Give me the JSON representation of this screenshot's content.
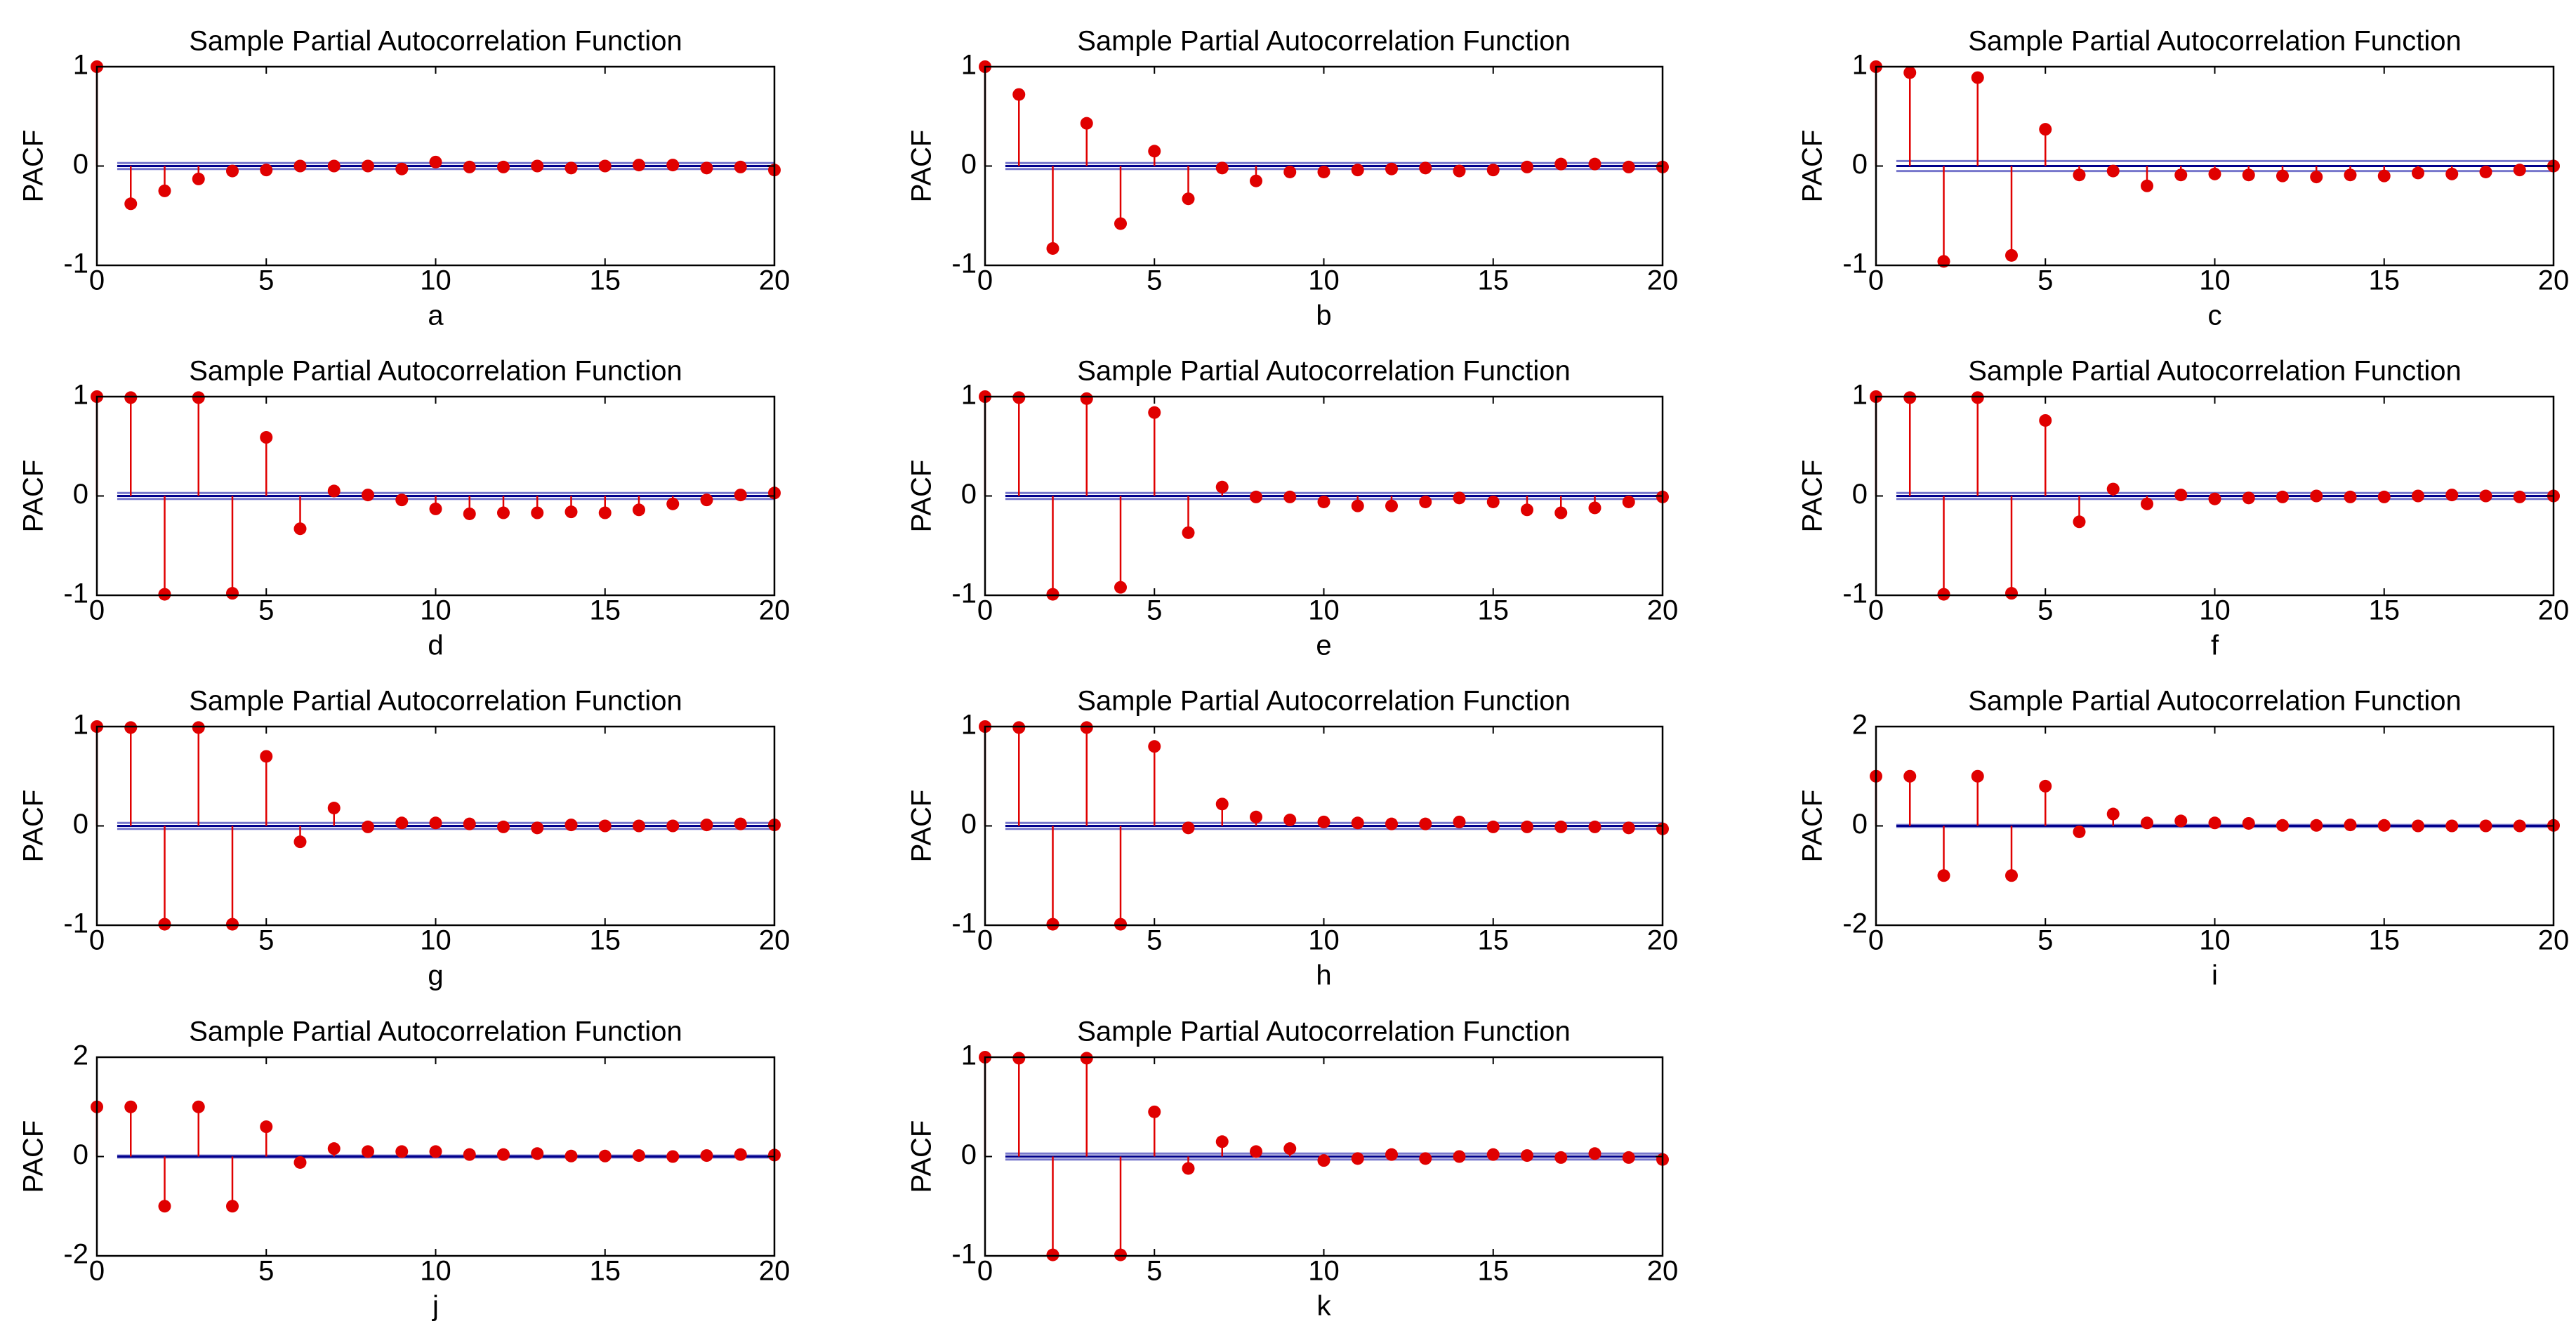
{
  "figure": {
    "colors": {
      "stem": "#e00000",
      "marker": "#e00000",
      "confidence": "#7777cc",
      "zero": "#00008b",
      "axes": "#000000"
    }
  },
  "chart_data": [
    {
      "id": "a",
      "type": "stem",
      "title": "Sample Partial Autocorrelation Function",
      "xlabel": "a",
      "ylabel": "PACF",
      "xlim": [
        0,
        20
      ],
      "ylim": [
        -1,
        1
      ],
      "xticks": [
        0,
        5,
        10,
        15,
        20
      ],
      "yticks": [
        -1,
        0,
        1
      ],
      "confidence": 0.03,
      "lags": [
        0,
        1,
        2,
        3,
        4,
        5,
        6,
        7,
        8,
        9,
        10,
        11,
        12,
        13,
        14,
        15,
        16,
        17,
        18,
        19,
        20
      ],
      "values": [
        1,
        -0.38,
        -0.25,
        -0.13,
        -0.05,
        -0.04,
        0.0,
        0.0,
        0.0,
        -0.03,
        0.04,
        -0.01,
        -0.01,
        0.0,
        -0.02,
        0.0,
        0.01,
        0.01,
        -0.02,
        -0.01,
        -0.04
      ]
    },
    {
      "id": "b",
      "type": "stem",
      "title": "Sample Partial Autocorrelation Function",
      "xlabel": "b",
      "ylabel": "PACF",
      "xlim": [
        0,
        20
      ],
      "ylim": [
        -1,
        1
      ],
      "xticks": [
        0,
        5,
        10,
        15,
        20
      ],
      "yticks": [
        -1,
        0,
        1
      ],
      "confidence": 0.03,
      "lags": [
        0,
        1,
        2,
        3,
        4,
        5,
        6,
        7,
        8,
        9,
        10,
        11,
        12,
        13,
        14,
        15,
        16,
        17,
        18,
        19,
        20
      ],
      "values": [
        1,
        0.72,
        -0.83,
        0.43,
        -0.58,
        0.15,
        -0.33,
        -0.02,
        -0.15,
        -0.06,
        -0.06,
        -0.04,
        -0.03,
        -0.02,
        -0.05,
        -0.04,
        -0.01,
        0.02,
        0.02,
        -0.01,
        -0.01
      ]
    },
    {
      "id": "c",
      "type": "stem",
      "title": "Sample Partial Autocorrelation Function",
      "xlabel": "c",
      "ylabel": "PACF",
      "xlim": [
        0,
        20
      ],
      "ylim": [
        -1,
        1
      ],
      "xticks": [
        0,
        5,
        10,
        15,
        20
      ],
      "yticks": [
        -1,
        0,
        1
      ],
      "confidence": 0.05,
      "lags": [
        0,
        1,
        2,
        3,
        4,
        5,
        6,
        7,
        8,
        9,
        10,
        11,
        12,
        13,
        14,
        15,
        16,
        17,
        18,
        19,
        20
      ],
      "values": [
        1,
        0.94,
        -0.96,
        0.89,
        -0.9,
        0.37,
        -0.09,
        -0.05,
        -0.2,
        -0.09,
        -0.08,
        -0.09,
        -0.1,
        -0.11,
        -0.09,
        -0.1,
        -0.07,
        -0.08,
        -0.06,
        -0.04,
        0.0
      ]
    },
    {
      "id": "d",
      "type": "stem",
      "title": "Sample Partial Autocorrelation Function",
      "xlabel": "d",
      "ylabel": "PACF",
      "xlim": [
        0,
        20
      ],
      "ylim": [
        -1,
        1
      ],
      "xticks": [
        0,
        5,
        10,
        15,
        20
      ],
      "yticks": [
        -1,
        0,
        1
      ],
      "confidence": 0.03,
      "lags": [
        0,
        1,
        2,
        3,
        4,
        5,
        6,
        7,
        8,
        9,
        10,
        11,
        12,
        13,
        14,
        15,
        16,
        17,
        18,
        19,
        20
      ],
      "values": [
        1,
        0.99,
        -0.99,
        0.99,
        -0.98,
        0.59,
        -0.33,
        0.05,
        0.01,
        -0.04,
        -0.13,
        -0.18,
        -0.17,
        -0.17,
        -0.16,
        -0.17,
        -0.14,
        -0.08,
        -0.04,
        0.01,
        0.03
      ]
    },
    {
      "id": "e",
      "type": "stem",
      "title": "Sample Partial Autocorrelation Function",
      "xlabel": "e",
      "ylabel": "PACF",
      "xlim": [
        0,
        20
      ],
      "ylim": [
        -1,
        1
      ],
      "xticks": [
        0,
        5,
        10,
        15,
        20
      ],
      "yticks": [
        -1,
        0,
        1
      ],
      "confidence": 0.03,
      "lags": [
        0,
        1,
        2,
        3,
        4,
        5,
        6,
        7,
        8,
        9,
        10,
        11,
        12,
        13,
        14,
        15,
        16,
        17,
        18,
        19,
        20
      ],
      "values": [
        1,
        0.99,
        -0.99,
        0.98,
        -0.92,
        0.84,
        -0.37,
        0.09,
        -0.01,
        -0.01,
        -0.06,
        -0.1,
        -0.1,
        -0.06,
        -0.02,
        -0.06,
        -0.14,
        -0.17,
        -0.12,
        -0.06,
        -0.01
      ]
    },
    {
      "id": "f",
      "type": "stem",
      "title": "Sample Partial Autocorrelation Function",
      "xlabel": "f",
      "ylabel": "PACF",
      "xlim": [
        0,
        20
      ],
      "ylim": [
        -1,
        1
      ],
      "xticks": [
        0,
        5,
        10,
        15,
        20
      ],
      "yticks": [
        -1,
        0,
        1
      ],
      "confidence": 0.03,
      "lags": [
        0,
        1,
        2,
        3,
        4,
        5,
        6,
        7,
        8,
        9,
        10,
        11,
        12,
        13,
        14,
        15,
        16,
        17,
        18,
        19,
        20
      ],
      "values": [
        1,
        0.99,
        -0.99,
        0.99,
        -0.98,
        0.76,
        -0.26,
        0.07,
        -0.08,
        0.01,
        -0.03,
        -0.02,
        -0.01,
        0.0,
        -0.01,
        -0.01,
        0.0,
        0.01,
        0.0,
        -0.01,
        0.0
      ]
    },
    {
      "id": "g",
      "type": "stem",
      "title": "Sample Partial Autocorrelation Function",
      "xlabel": "g",
      "ylabel": "PACF",
      "xlim": [
        0,
        20
      ],
      "ylim": [
        -1,
        1
      ],
      "xticks": [
        0,
        5,
        10,
        15,
        20
      ],
      "yticks": [
        -1,
        0,
        1
      ],
      "confidence": 0.03,
      "lags": [
        0,
        1,
        2,
        3,
        4,
        5,
        6,
        7,
        8,
        9,
        10,
        11,
        12,
        13,
        14,
        15,
        16,
        17,
        18,
        19,
        20
      ],
      "values": [
        1,
        0.99,
        -0.99,
        0.99,
        -0.99,
        0.7,
        -0.16,
        0.18,
        -0.01,
        0.03,
        0.03,
        0.02,
        -0.01,
        -0.02,
        0.01,
        0.0,
        0.0,
        0.0,
        0.01,
        0.02,
        0.01
      ]
    },
    {
      "id": "h",
      "type": "stem",
      "title": "Sample Partial Autocorrelation Function",
      "xlabel": "h",
      "ylabel": "PACF",
      "xlim": [
        0,
        20
      ],
      "ylim": [
        -1,
        1
      ],
      "xticks": [
        0,
        5,
        10,
        15,
        20
      ],
      "yticks": [
        -1,
        0,
        1
      ],
      "confidence": 0.03,
      "lags": [
        0,
        1,
        2,
        3,
        4,
        5,
        6,
        7,
        8,
        9,
        10,
        11,
        12,
        13,
        14,
        15,
        16,
        17,
        18,
        19,
        20
      ],
      "values": [
        1,
        0.99,
        -0.99,
        0.99,
        -0.99,
        0.8,
        -0.02,
        0.22,
        0.09,
        0.06,
        0.04,
        0.03,
        0.02,
        0.02,
        0.04,
        -0.01,
        -0.01,
        -0.01,
        -0.01,
        -0.02,
        -0.03
      ]
    },
    {
      "id": "i",
      "type": "stem",
      "title": "Sample Partial Autocorrelation Function",
      "xlabel": "i",
      "ylabel": "PACF",
      "xlim": [
        0,
        20
      ],
      "ylim": [
        -2,
        2
      ],
      "xticks": [
        0,
        5,
        10,
        15,
        20
      ],
      "yticks": [
        -2,
        0,
        2
      ],
      "confidence": 0.02,
      "lags": [
        0,
        1,
        2,
        3,
        4,
        5,
        6,
        7,
        8,
        9,
        10,
        11,
        12,
        13,
        14,
        15,
        16,
        17,
        18,
        19,
        20
      ],
      "values": [
        1,
        1.0,
        -1.0,
        1.0,
        -1.0,
        0.8,
        -0.12,
        0.24,
        0.06,
        0.1,
        0.06,
        0.05,
        0.01,
        0.01,
        0.02,
        0.01,
        0.0,
        0.0,
        0.0,
        0.0,
        0.01
      ]
    },
    {
      "id": "j",
      "type": "stem",
      "title": "Sample Partial Autocorrelation Function",
      "xlabel": "j",
      "ylabel": "PACF",
      "xlim": [
        0,
        20
      ],
      "ylim": [
        -2,
        2
      ],
      "xticks": [
        0,
        5,
        10,
        15,
        20
      ],
      "yticks": [
        -2,
        0,
        2
      ],
      "confidence": 0.02,
      "lags": [
        0,
        1,
        2,
        3,
        4,
        5,
        6,
        7,
        8,
        9,
        10,
        11,
        12,
        13,
        14,
        15,
        16,
        17,
        18,
        19,
        20
      ],
      "values": [
        1,
        1.0,
        -1.0,
        1.0,
        -1.0,
        0.6,
        -0.12,
        0.16,
        0.1,
        0.1,
        0.1,
        0.04,
        0.04,
        0.06,
        0.01,
        0.01,
        0.02,
        0.0,
        0.02,
        0.04,
        0.03
      ]
    },
    {
      "id": "k",
      "type": "stem",
      "title": "Sample Partial Autocorrelation Function",
      "xlabel": "k",
      "ylabel": "PACF",
      "xlim": [
        0,
        20
      ],
      "ylim": [
        -1,
        1
      ],
      "xticks": [
        0,
        5,
        10,
        15,
        20
      ],
      "yticks": [
        -1,
        0,
        1
      ],
      "confidence": 0.03,
      "lags": [
        0,
        1,
        2,
        3,
        4,
        5,
        6,
        7,
        8,
        9,
        10,
        11,
        12,
        13,
        14,
        15,
        16,
        17,
        18,
        19,
        20
      ],
      "values": [
        1,
        0.99,
        -0.99,
        0.99,
        -0.99,
        0.45,
        -0.12,
        0.15,
        0.05,
        0.08,
        -0.04,
        -0.02,
        0.02,
        -0.02,
        0.0,
        0.02,
        0.01,
        -0.01,
        0.03,
        -0.01,
        -0.03
      ]
    }
  ]
}
